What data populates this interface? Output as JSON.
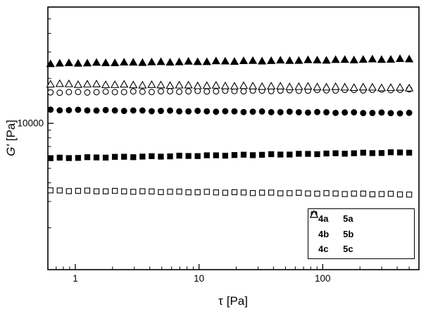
{
  "figure": {
    "background": "#ffffff",
    "frame_color": "#000000",
    "marker_color": "#000000"
  },
  "chart_data": {
    "type": "scatter",
    "title": "",
    "xlabel": {
      "symbol": "τ",
      "unit": "[Pa]"
    },
    "ylabel": {
      "symbol": "G'",
      "unit": "[Pa]"
    },
    "x_scale": "log",
    "y_scale": "log",
    "xlim": [
      0.6,
      600
    ],
    "ylim": [
      1050,
      60000
    ],
    "x_major_ticks": [
      1,
      10,
      100
    ],
    "x_major_tick_labels": [
      "1",
      "10",
      "100"
    ],
    "y_major_ticks": [
      10000
    ],
    "y_major_tick_labels": [
      "10000"
    ],
    "grid": false,
    "n_points": 40,
    "x_data_range": [
      0.63,
      500
    ],
    "series": [
      {
        "name": "4a",
        "marker": "square",
        "fill": "filled",
        "plateau": 6100,
        "start": 5850,
        "end": 6400
      },
      {
        "name": "4b",
        "marker": "circle",
        "fill": "filled",
        "plateau": 12000,
        "start": 12300,
        "end": 11700
      },
      {
        "name": "4c",
        "marker": "triangle",
        "fill": "filled",
        "plateau": 26000,
        "start": 25200,
        "end": 27000
      },
      {
        "name": "5a",
        "marker": "square",
        "fill": "open",
        "plateau": 3400,
        "start": 3550,
        "end": 3350
      },
      {
        "name": "5b",
        "marker": "circle",
        "fill": "open",
        "plateau": 16400,
        "start": 16100,
        "end": 16800
      },
      {
        "name": "5c",
        "marker": "triangle",
        "fill": "open",
        "plateau": 17800,
        "start": 18400,
        "end": 17300
      }
    ],
    "legend": {
      "position": "lower right",
      "columns": [
        [
          "4a",
          "4b",
          "4c"
        ],
        [
          "5a",
          "5b",
          "5c"
        ]
      ]
    }
  }
}
